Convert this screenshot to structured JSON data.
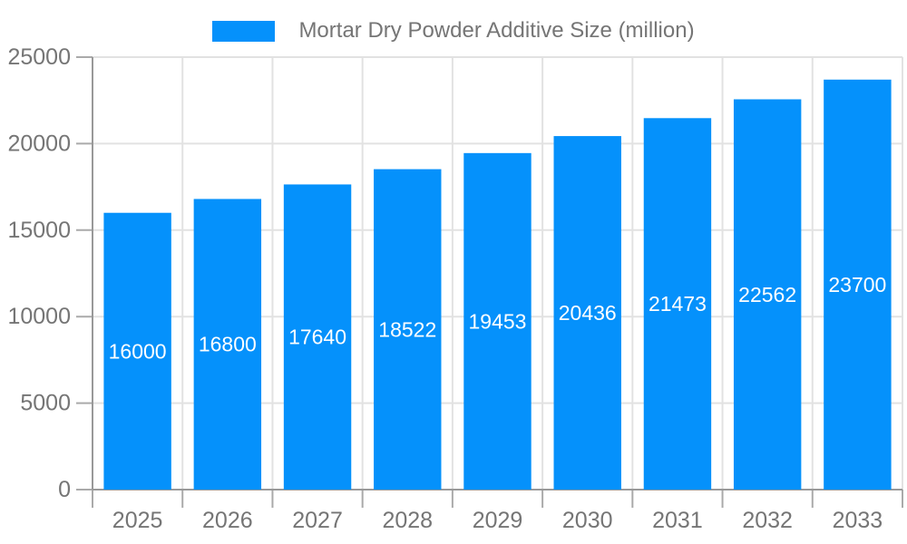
{
  "legend": {
    "label": "Mortar Dry Powder Additive Size (million)"
  },
  "chart_data": {
    "type": "bar",
    "title": "Mortar Dry Powder Additive Size (million)",
    "series_name": "Mortar Dry Powder Additive Size (million)",
    "categories": [
      "2025",
      "2026",
      "2027",
      "2028",
      "2029",
      "2030",
      "2031",
      "2032",
      "2033"
    ],
    "values": [
      16000,
      16800,
      17640,
      18522,
      19453,
      20436,
      21473,
      22562,
      23700
    ],
    "xlabel": "",
    "ylabel": "",
    "ylim": [
      0,
      25000
    ],
    "y_ticks": [
      0,
      5000,
      10000,
      15000,
      20000,
      25000
    ],
    "y_tick_labels": [
      "0",
      "5000",
      "10000",
      "15000",
      "20000",
      "25000"
    ],
    "grid": true,
    "legend_position": "top-center",
    "colors": {
      "bar": "#0591FB",
      "value_label": "#ffffff",
      "axis": "#999999",
      "tick": "#aaaaaa",
      "grid": "#e2e2e2",
      "axis_label": "#757575"
    }
  }
}
